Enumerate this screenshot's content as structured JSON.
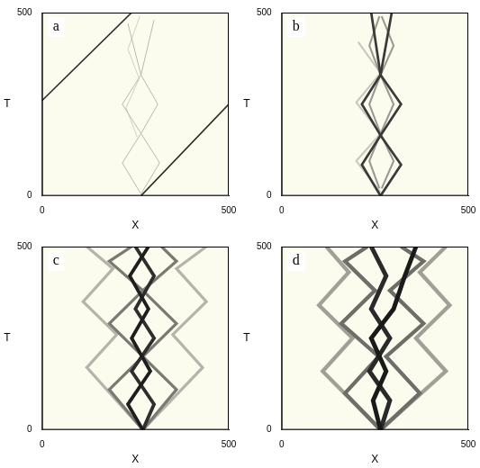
{
  "chart_data": [
    {
      "type": "line",
      "title": "a",
      "x_label": "X",
      "y_label": "T",
      "xlim": [
        0,
        500
      ],
      "ylim": [
        0,
        500
      ],
      "xticks": [
        0,
        500
      ],
      "yticks": [
        0,
        500
      ],
      "grid": false,
      "series": [
        {
          "color": "#2a2a2a",
          "x": [
            265,
            500
          ],
          "values": [
            0,
            250
          ]
        },
        {
          "color": "#2a2a2a",
          "x": [
            0,
            240
          ],
          "values": [
            260,
            500
          ]
        },
        {
          "color": "#b8b8b0",
          "x": [
            265,
            215,
            265,
            215,
            265,
            230
          ],
          "values": [
            5,
            90,
            170,
            250,
            330,
            470
          ]
        },
        {
          "color": "#b8b8b0",
          "x": [
            265,
            315,
            265,
            310,
            265,
            300
          ],
          "values": [
            5,
            90,
            170,
            250,
            330,
            480
          ]
        },
        {
          "color": "#d0d0c8",
          "x": [
            255,
            225,
            260,
            230,
            262
          ],
          "values": [
            160,
            240,
            320,
            400,
            490
          ]
        }
      ]
    },
    {
      "type": "line",
      "title": "b",
      "x_label": "X",
      "y_label": "T",
      "xlim": [
        0,
        500
      ],
      "ylim": [
        0,
        500
      ],
      "xticks": [
        0,
        500
      ],
      "yticks": [
        0,
        500
      ],
      "grid": false,
      "series": [
        {
          "color": "#3a3a3a",
          "x": [
            265,
            215,
            265,
            215,
            265,
            240
          ],
          "values": [
            0,
            85,
            165,
            250,
            330,
            500
          ]
        },
        {
          "color": "#3a3a3a",
          "x": [
            265,
            320,
            265,
            320,
            265,
            295
          ],
          "values": [
            0,
            85,
            165,
            250,
            330,
            500
          ]
        },
        {
          "color": "#9a9a92",
          "x": [
            262,
            235,
            265,
            235,
            265,
            235,
            262
          ],
          "values": [
            20,
            95,
            170,
            250,
            330,
            410,
            490
          ]
        },
        {
          "color": "#9a9a92",
          "x": [
            268,
            300,
            265,
            300,
            265,
            300,
            268
          ],
          "values": [
            20,
            95,
            170,
            250,
            330,
            410,
            490
          ]
        },
        {
          "color": "#c8c8c0",
          "x": [
            265,
            200,
            265,
            200,
            265,
            205
          ],
          "values": [
            10,
            95,
            170,
            255,
            335,
            420
          ]
        }
      ]
    },
    {
      "type": "line",
      "title": "c",
      "x_label": "X",
      "y_label": "T",
      "xlim": [
        0,
        500
      ],
      "ylim": [
        0,
        500
      ],
      "xticks": [
        0,
        500
      ],
      "yticks": [
        0,
        500
      ],
      "grid": false,
      "series": [
        {
          "color": "#1e1e1e",
          "x": [
            270,
            230,
            290,
            240,
            285,
            235,
            285
          ],
          "values": [
            0,
            70,
            160,
            250,
            330,
            420,
            500
          ]
        },
        {
          "color": "#2e2e2e",
          "x": [
            270,
            300,
            240,
            300,
            250,
            300,
            250
          ],
          "values": [
            0,
            70,
            160,
            250,
            330,
            420,
            500
          ]
        },
        {
          "color": "#7a7a74",
          "x": [
            270,
            180,
            270,
            180,
            270,
            180,
            240
          ],
          "values": [
            0,
            110,
            200,
            290,
            380,
            460,
            500
          ]
        },
        {
          "color": "#7a7a74",
          "x": [
            270,
            360,
            270,
            360,
            270,
            360,
            320
          ],
          "values": [
            0,
            110,
            200,
            290,
            380,
            460,
            500
          ]
        },
        {
          "color": "#b4b4ac",
          "x": [
            270,
            120,
            200,
            110,
            190,
            120
          ],
          "values": [
            0,
            170,
            260,
            350,
            440,
            500
          ]
        },
        {
          "color": "#b4b4ac",
          "x": [
            270,
            430,
            350,
            440,
            360,
            440
          ],
          "values": [
            0,
            170,
            260,
            350,
            440,
            500
          ]
        }
      ]
    },
    {
      "type": "line",
      "title": "d",
      "x_label": "X",
      "y_label": "T",
      "xlim": [
        0,
        500
      ],
      "ylim": [
        0,
        500
      ],
      "xticks": [
        0,
        500
      ],
      "yticks": [
        0,
        500
      ],
      "grid": false,
      "series": [
        {
          "color": "#1a1a1a",
          "x": [
            265,
            245,
            280,
            240,
            300,
            330,
            360
          ],
          "values": [
            0,
            80,
            160,
            250,
            330,
            420,
            500
          ]
        },
        {
          "color": "#2a2a2a",
          "x": [
            265,
            290,
            235,
            290,
            240,
            280,
            240
          ],
          "values": [
            0,
            80,
            160,
            250,
            330,
            420,
            500
          ]
        },
        {
          "color": "#6e6e68",
          "x": [
            265,
            170,
            260,
            160,
            250,
            170,
            230
          ],
          "values": [
            0,
            100,
            200,
            290,
            380,
            460,
            500
          ]
        },
        {
          "color": "#6e6e68",
          "x": [
            265,
            370,
            280,
            380,
            290,
            380,
            320
          ],
          "values": [
            0,
            100,
            200,
            290,
            380,
            460,
            500
          ]
        },
        {
          "color": "#a0a098",
          "x": [
            265,
            110,
            190,
            100,
            180,
            120
          ],
          "values": [
            0,
            160,
            250,
            340,
            430,
            500
          ]
        },
        {
          "color": "#a0a098",
          "x": [
            265,
            440,
            360,
            450,
            370,
            440
          ],
          "values": [
            0,
            160,
            250,
            340,
            430,
            500
          ]
        }
      ]
    }
  ]
}
